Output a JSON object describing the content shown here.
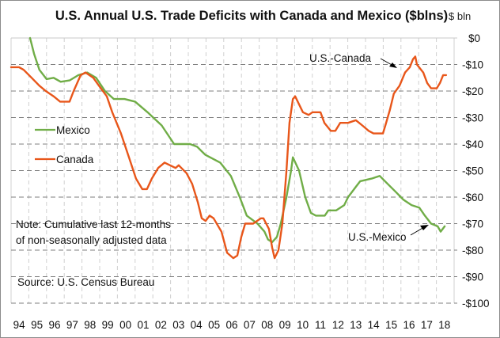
{
  "chart_data": {
    "type": "line",
    "title": "U.S. Annual U.S. Trade Deficits with Canada and Mexico ($blns)",
    "ylabel": "$ bln",
    "xlabel": "",
    "ylim": [
      -100,
      0
    ],
    "xlim": [
      1994,
      2019
    ],
    "grid": true,
    "yticks": [
      0,
      -10,
      -20,
      -30,
      -40,
      -50,
      -60,
      -70,
      -80,
      -90,
      -100
    ],
    "ytick_labels": [
      "$0",
      "-$10",
      "-$20",
      "-$30",
      "-$40",
      "-$50",
      "-$60",
      "-$70",
      "-$80",
      "-$90",
      "-$100"
    ],
    "xtick_labels": [
      "94",
      "95",
      "96",
      "97",
      "98",
      "99",
      "00",
      "01",
      "02",
      "03",
      "04",
      "05",
      "06",
      "07",
      "08",
      "09",
      "10",
      "11",
      "12",
      "13",
      "14",
      "15",
      "16",
      "17",
      "18"
    ],
    "legend": {
      "placement": "left",
      "entries": [
        "Mexico",
        "Canada"
      ]
    },
    "annotations": [
      {
        "text": "U.S.-Canada",
        "points_to": "Canada"
      },
      {
        "text": "U.S.-Mexico",
        "points_to": "Mexico"
      },
      {
        "text_lines": [
          "Note:  Cumulative last 12-months",
          "of non-seasonally adjusted data"
        ]
      },
      {
        "text": "Source:  U.S. Census Bureau"
      }
    ],
    "series": [
      {
        "name": "Mexico",
        "color": "#70ad47",
        "points": [
          [
            1995.07,
            0
          ],
          [
            1995.3,
            -6
          ],
          [
            1995.6,
            -12
          ],
          [
            1996.0,
            -15.5
          ],
          [
            1996.4,
            -15
          ],
          [
            1996.8,
            -16.5
          ],
          [
            1997.3,
            -16
          ],
          [
            1997.8,
            -14
          ],
          [
            1998.3,
            -13
          ],
          [
            1998.8,
            -15
          ],
          [
            1999.3,
            -20
          ],
          [
            1999.8,
            -23
          ],
          [
            2000.4,
            -23
          ],
          [
            2001.0,
            -24
          ],
          [
            2001.7,
            -28
          ],
          [
            2002.5,
            -33
          ],
          [
            2003.2,
            -40
          ],
          [
            2003.6,
            -40
          ],
          [
            2004.1,
            -40
          ],
          [
            2004.5,
            -41
          ],
          [
            2004.95,
            -44
          ],
          [
            2005.8,
            -47
          ],
          [
            2006.4,
            -52
          ],
          [
            2006.9,
            -60
          ],
          [
            2007.3,
            -67
          ],
          [
            2007.9,
            -70
          ],
          [
            2008.3,
            -73
          ],
          [
            2008.5,
            -76
          ],
          [
            2008.73,
            -77
          ],
          [
            2009.0,
            -75
          ],
          [
            2009.22,
            -70
          ],
          [
            2009.54,
            -60
          ],
          [
            2009.8,
            -50
          ],
          [
            2009.9,
            -45
          ],
          [
            2010.25,
            -50
          ],
          [
            2010.6,
            -60
          ],
          [
            2010.92,
            -66
          ],
          [
            2011.2,
            -67
          ],
          [
            2011.7,
            -67
          ],
          [
            2011.9,
            -65
          ],
          [
            2012.35,
            -65
          ],
          [
            2012.8,
            -63
          ],
          [
            2013.02,
            -60
          ],
          [
            2013.47,
            -56
          ],
          [
            2013.7,
            -54
          ],
          [
            2014.35,
            -53
          ],
          [
            2014.8,
            -52
          ],
          [
            2015.25,
            -55
          ],
          [
            2015.7,
            -58
          ],
          [
            2016.14,
            -61
          ],
          [
            2016.6,
            -63
          ],
          [
            2017.04,
            -64
          ],
          [
            2017.35,
            -67
          ],
          [
            2017.7,
            -70
          ],
          [
            2018.07,
            -71
          ],
          [
            2018.24,
            -73
          ],
          [
            2018.47,
            -71
          ]
        ]
      },
      {
        "name": "Canada",
        "color": "#e8561a",
        "points": [
          [
            1994.0,
            -11
          ],
          [
            1994.45,
            -11
          ],
          [
            1994.71,
            -12
          ],
          [
            1995.16,
            -15
          ],
          [
            1995.6,
            -18
          ],
          [
            1995.96,
            -20
          ],
          [
            1996.4,
            -22
          ],
          [
            1996.77,
            -24
          ],
          [
            1997.3,
            -24
          ],
          [
            1997.53,
            -20
          ],
          [
            1997.93,
            -14
          ],
          [
            1998.2,
            -13
          ],
          [
            1998.64,
            -15
          ],
          [
            1998.96,
            -18
          ],
          [
            1999.4,
            -22
          ],
          [
            1999.71,
            -28
          ],
          [
            2000.2,
            -36
          ],
          [
            2000.65,
            -45
          ],
          [
            2001.05,
            -53
          ],
          [
            2001.4,
            -57
          ],
          [
            2001.67,
            -57
          ],
          [
            2001.94,
            -53
          ],
          [
            2002.3,
            -49
          ],
          [
            2002.66,
            -47
          ],
          [
            2002.97,
            -48
          ],
          [
            2003.28,
            -49
          ],
          [
            2003.46,
            -48
          ],
          [
            2003.9,
            -51
          ],
          [
            2004.22,
            -55
          ],
          [
            2004.54,
            -62
          ],
          [
            2004.76,
            -68
          ],
          [
            2004.98,
            -69
          ],
          [
            2005.2,
            -67
          ],
          [
            2005.43,
            -68
          ],
          [
            2005.87,
            -73
          ],
          [
            2006.19,
            -81
          ],
          [
            2006.54,
            -83
          ],
          [
            2006.77,
            -82
          ],
          [
            2006.99,
            -75
          ],
          [
            2007.21,
            -70
          ],
          [
            2007.66,
            -70
          ],
          [
            2008.1,
            -68
          ],
          [
            2008.24,
            -68
          ],
          [
            2008.55,
            -72
          ],
          [
            2008.73,
            -79
          ],
          [
            2008.87,
            -83
          ],
          [
            2009.09,
            -80
          ],
          [
            2009.31,
            -70
          ],
          [
            2009.54,
            -50
          ],
          [
            2009.71,
            -32
          ],
          [
            2009.9,
            -23
          ],
          [
            2010.03,
            -22
          ],
          [
            2010.25,
            -25
          ],
          [
            2010.47,
            -28
          ],
          [
            2010.79,
            -29
          ],
          [
            2011.01,
            -28
          ],
          [
            2011.46,
            -28
          ],
          [
            2011.68,
            -32
          ],
          [
            2012.04,
            -35
          ],
          [
            2012.3,
            -35
          ],
          [
            2012.57,
            -32
          ],
          [
            2013.02,
            -32
          ],
          [
            2013.46,
            -31
          ],
          [
            2013.82,
            -33
          ],
          [
            2014.18,
            -35
          ],
          [
            2014.45,
            -36
          ],
          [
            2014.98,
            -36
          ],
          [
            2015.12,
            -33
          ],
          [
            2015.38,
            -27
          ],
          [
            2015.6,
            -21
          ],
          [
            2015.92,
            -18
          ],
          [
            2016.23,
            -13
          ],
          [
            2016.5,
            -11
          ],
          [
            2016.68,
            -8
          ],
          [
            2016.81,
            -7
          ],
          [
            2016.9,
            -10
          ],
          [
            2017.26,
            -13
          ],
          [
            2017.48,
            -17
          ],
          [
            2017.7,
            -19
          ],
          [
            2018.02,
            -19
          ],
          [
            2018.2,
            -17
          ],
          [
            2018.38,
            -14
          ],
          [
            2018.55,
            -14
          ]
        ]
      }
    ]
  }
}
